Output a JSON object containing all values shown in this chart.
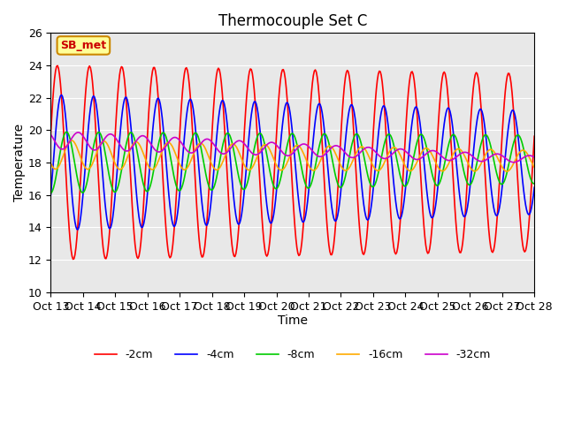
{
  "title": "Thermocouple Set C",
  "xlabel": "Time",
  "ylabel": "Temperature",
  "ylim": [
    10,
    26
  ],
  "yticks": [
    10,
    12,
    14,
    16,
    18,
    20,
    22,
    24,
    26
  ],
  "xtick_labels": [
    "Oct 13",
    "Oct 14",
    "Oct 15",
    "Oct 16",
    "Oct 17",
    "Oct 18",
    "Oct 19",
    "Oct 20",
    "Oct 21",
    "Oct 22",
    "Oct 23",
    "Oct 24",
    "Oct 25",
    "Oct 26",
    "Oct 27",
    "Oct 28"
  ],
  "legend_labels": [
    "-2cm",
    "-4cm",
    "-8cm",
    "-16cm",
    "-32cm"
  ],
  "line_colors": [
    "#ff0000",
    "#0000ff",
    "#00cc00",
    "#ffaa00",
    "#cc00cc"
  ],
  "annotation_text": "SB_met",
  "annotation_color": "#cc0000",
  "annotation_bg": "#ffff99",
  "annotation_border": "#cc8800",
  "background_color": "#e8e8e8",
  "n_points": 500
}
